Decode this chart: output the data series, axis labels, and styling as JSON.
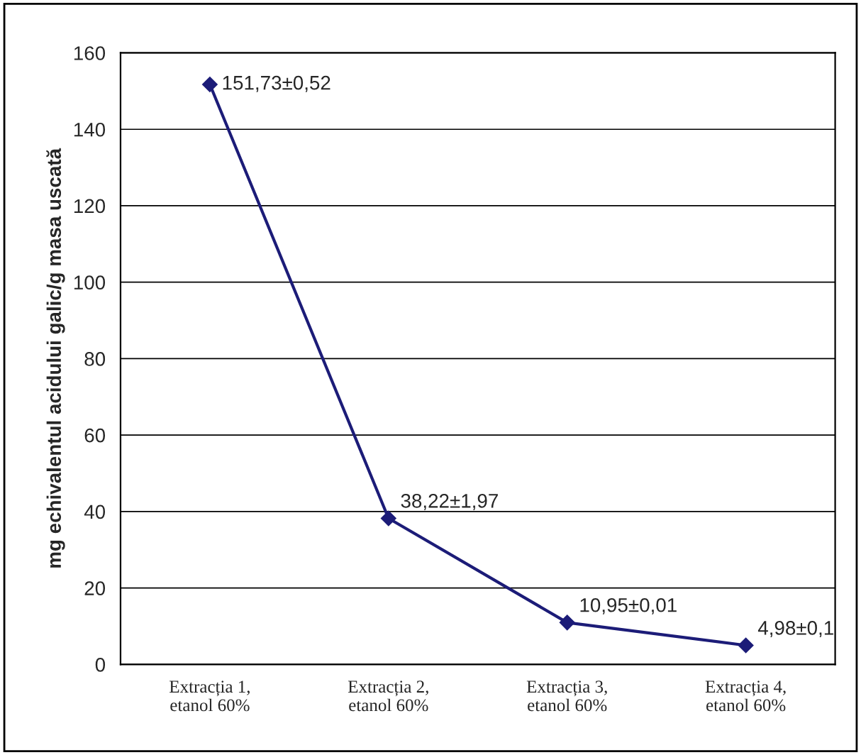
{
  "chart_data": {
    "type": "line",
    "ylabel": "mg echivalentul acidului galic/g masa uscată",
    "categories": [
      "Extracția 1,\netanol 60%",
      "Extracția 2,\netanol 60%",
      "Extracția 3,\netanol 60%",
      "Extracția 4,\netanol 60%"
    ],
    "series": [
      {
        "color": "#1c1c78",
        "values": [
          151.73,
          38.22,
          10.95,
          4.98
        ],
        "value_labels": [
          "151,73±0,52",
          "38,22±1,97",
          "10,95±0,01",
          "4,98±0,1"
        ]
      }
    ],
    "ylim": [
      0,
      160
    ],
    "yticks": [
      0,
      20,
      40,
      60,
      80,
      100,
      120,
      140,
      160
    ],
    "grid": "y",
    "marker": "diamond",
    "line_style": "solid",
    "legend": false
  }
}
